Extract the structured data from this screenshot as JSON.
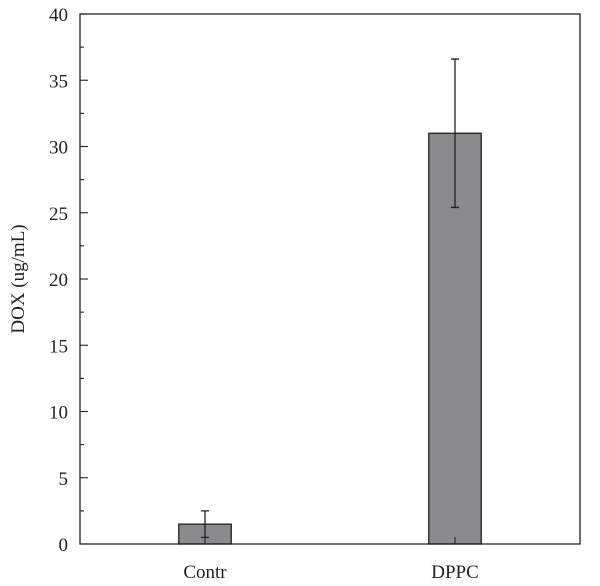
{
  "chart_data": {
    "type": "bar",
    "title": "",
    "xlabel": "",
    "ylabel": "DOX (ug/mL)",
    "ylim": [
      0,
      40
    ],
    "yticks": [
      0,
      5,
      10,
      15,
      20,
      25,
      30,
      35,
      40
    ],
    "categories": [
      "Contr",
      "DPPC"
    ],
    "values": [
      1.5,
      31.0
    ],
    "errors": [
      1.0,
      5.6
    ],
    "bar_color": "#8a8a8c",
    "grid": false,
    "legend": "none"
  }
}
